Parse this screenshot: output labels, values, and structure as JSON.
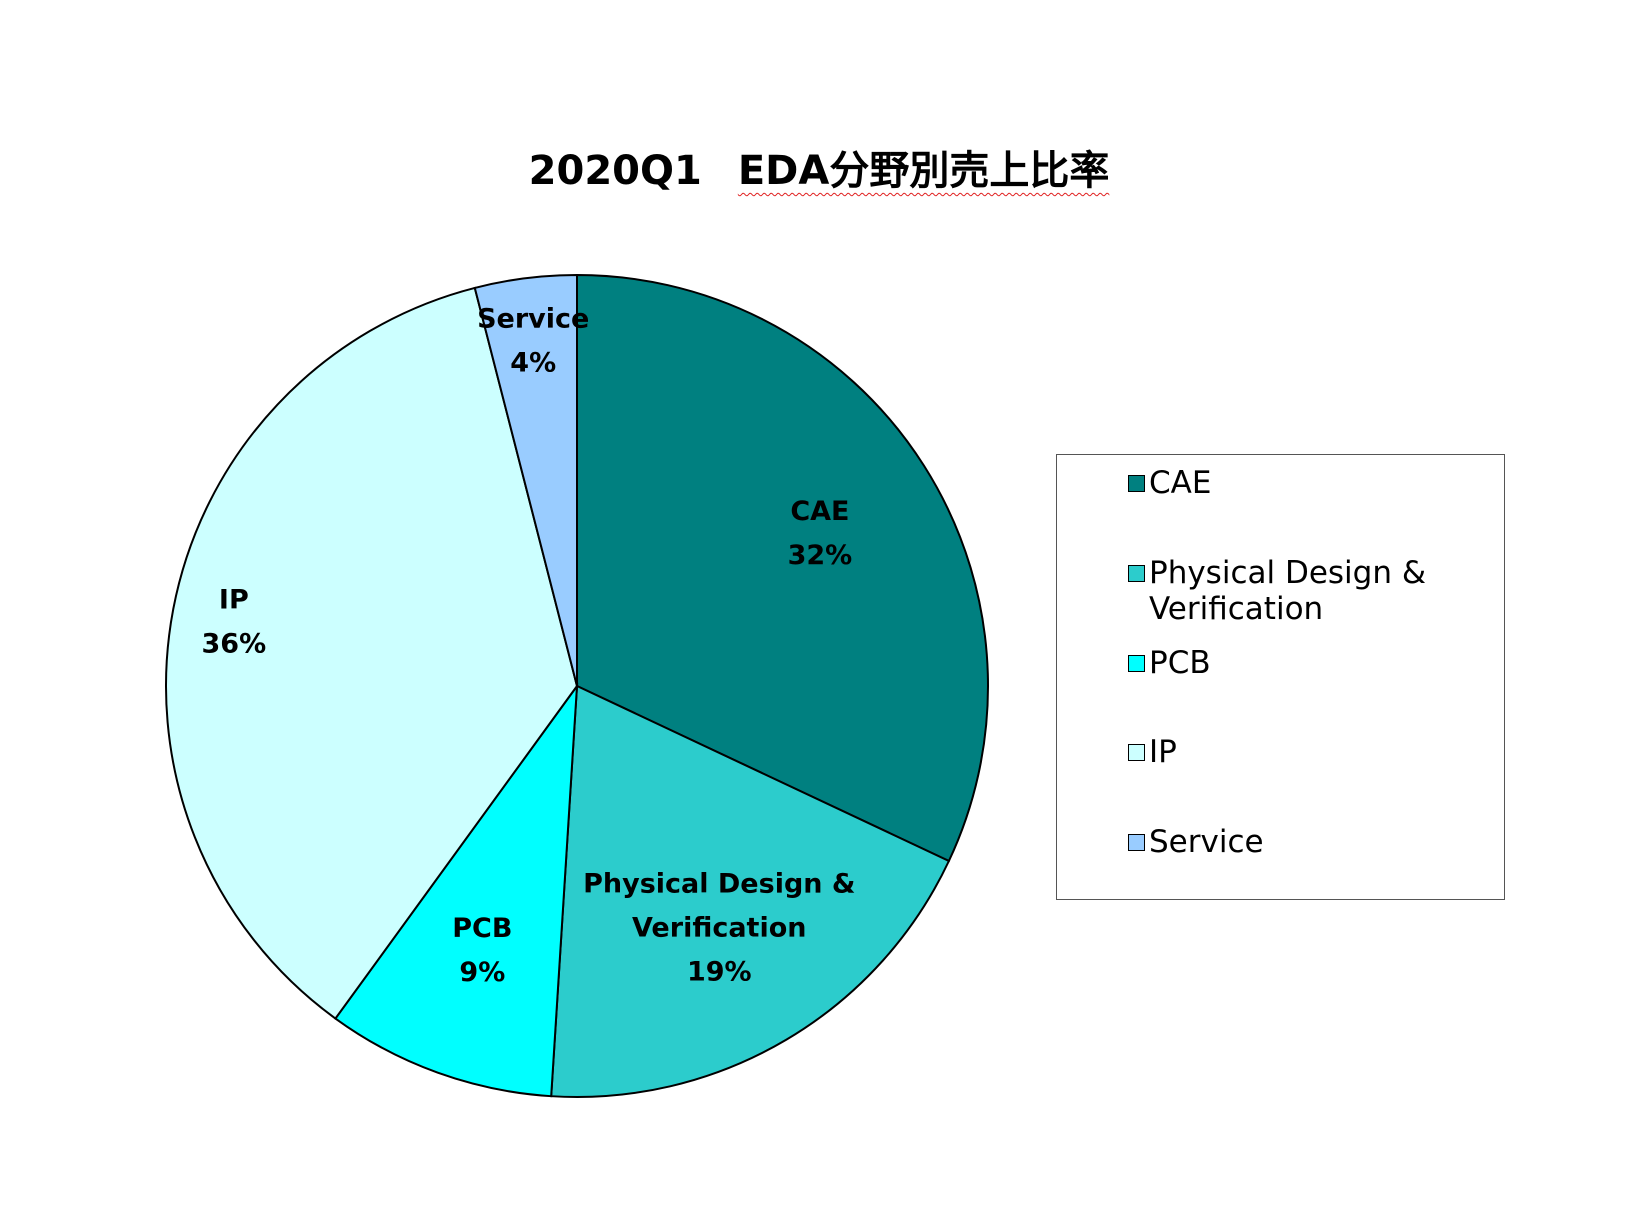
{
  "chart_data": {
    "type": "pie",
    "title_year": "2020Q1",
    "title_main": "EDA分野別売上比率",
    "legend_position": "right",
    "slices": [
      {
        "name": "CAE",
        "label_line1": "CAE",
        "label_line2": "",
        "value": 32,
        "pct_label": "32%",
        "color": "#008080"
      },
      {
        "name": "Physical Design & Verification",
        "label_line1": "Physical Design &",
        "label_line2": "Verification",
        "value": 19,
        "pct_label": "19%",
        "color": "#2ccccc"
      },
      {
        "name": "PCB",
        "label_line1": "PCB",
        "label_line2": "",
        "value": 9,
        "pct_label": "9%",
        "color": "#00ffff"
      },
      {
        "name": "IP",
        "label_line1": "IP",
        "label_line2": "",
        "value": 36,
        "pct_label": "36%",
        "color": "#ccffff"
      },
      {
        "name": "Service",
        "label_line1": "Service",
        "label_line2": "",
        "value": 4,
        "pct_label": "4%",
        "color": "#99ccff"
      }
    ],
    "legend": [
      {
        "label": "CAE",
        "color": "#008080"
      },
      {
        "label": "Physical Design & Verification",
        "color": "#2ccccc"
      },
      {
        "label": "PCB",
        "color": "#00ffff"
      },
      {
        "label": "IP",
        "color": "#ccffff"
      },
      {
        "label": "Service",
        "color": "#99ccff"
      }
    ]
  }
}
